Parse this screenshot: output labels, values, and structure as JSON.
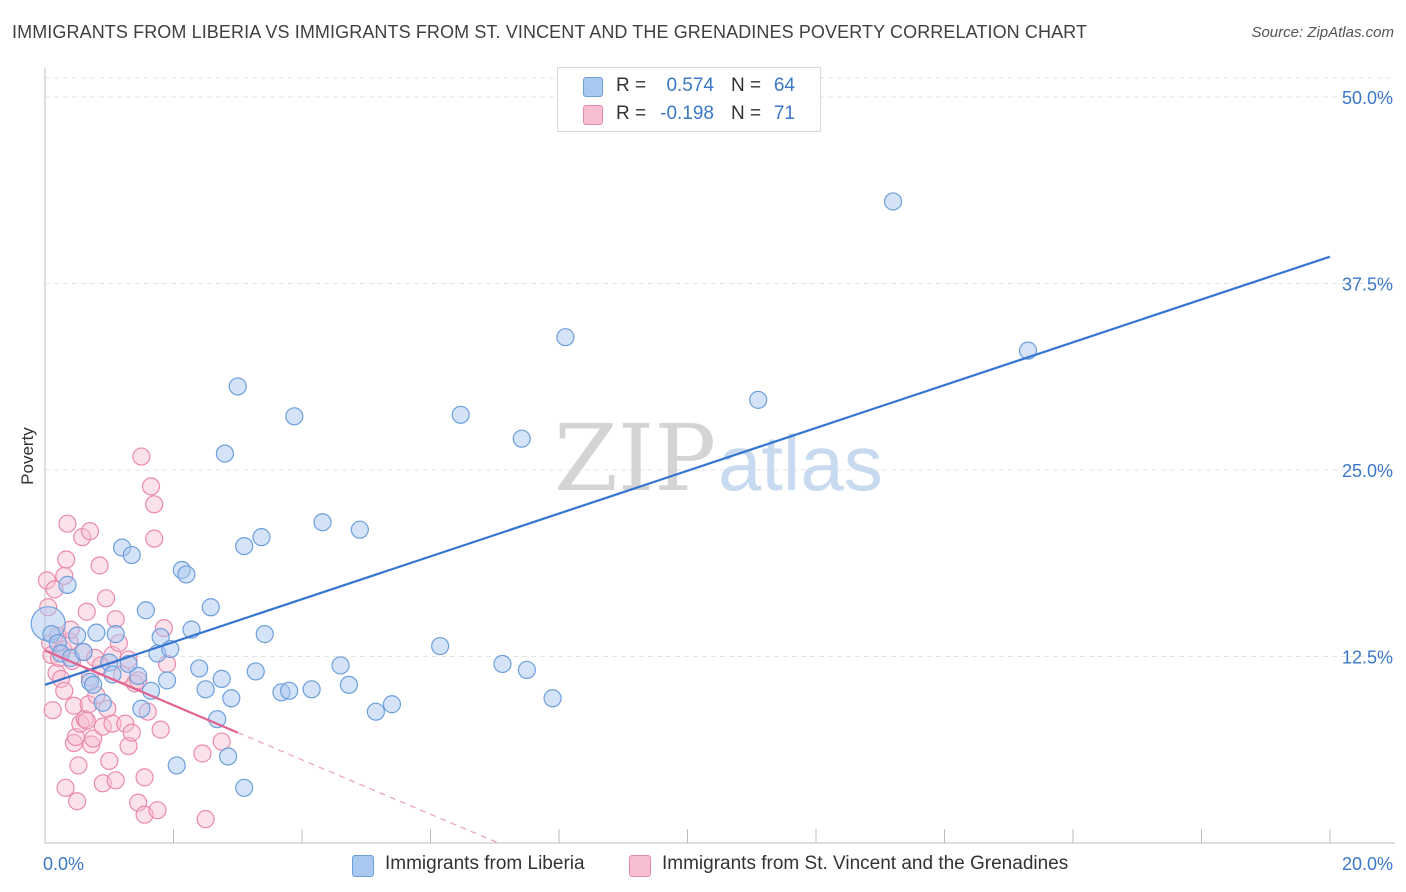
{
  "title": "IMMIGRANTS FROM LIBERIA VS IMMIGRANTS FROM ST. VINCENT AND THE GRENADINES POVERTY CORRELATION CHART",
  "source": "Source: ZipAtlas.com",
  "watermark": {
    "zip": "ZIP",
    "atlas": "atlas"
  },
  "legend_top": [
    {
      "r_label": "R =",
      "r_value": "0.574",
      "n_label": "N =",
      "n_value": "64"
    },
    {
      "r_label": "R =",
      "r_value": "-0.198",
      "n_label": "N =",
      "n_value": "71"
    }
  ],
  "legend_bottom": [
    "Immigrants from Liberia",
    "Immigrants from St. Vincent and the Grenadines"
  ],
  "colors": {
    "blue_fill": "#a9c8f0",
    "blue_stroke": "#6d9fdb",
    "blue_line": "#3575cf",
    "pink_fill": "#f6bfd1",
    "pink_stroke": "#e98aac",
    "pink_line": "#e0628f",
    "tick_label": "#3a78c9",
    "grid": "#e3e3e3"
  },
  "chart_data": {
    "type": "scatter",
    "title": "IMMIGRANTS FROM LIBERIA VS IMMIGRANTS FROM ST. VINCENT AND THE GRENADINES POVERTY CORRELATION CHART",
    "xlabel": "",
    "ylabel": "Poverty",
    "xlim": [
      0,
      20
    ],
    "ylim": [
      0,
      50
    ],
    "x_tick_labels": [
      "0.0%",
      "20.0%"
    ],
    "y_ticks": [
      12.5,
      25.0,
      37.5,
      50.0
    ],
    "y_tick_labels": [
      "12.5%",
      "25.0%",
      "37.5%",
      "50.0%"
    ],
    "grid": true,
    "legend_position": "top-center",
    "series": [
      {
        "name": "Immigrants from Liberia",
        "R": 0.574,
        "N": 64,
        "trend": {
          "x": [
            0,
            20
          ],
          "y": [
            10.6,
            39.3
          ]
        },
        "points": [
          {
            "x": 0.05,
            "y": 14.7,
            "big": true
          },
          {
            "x": 0.1,
            "y": 14.0
          },
          {
            "x": 0.2,
            "y": 13.4
          },
          {
            "x": 0.25,
            "y": 12.7
          },
          {
            "x": 0.35,
            "y": 17.3
          },
          {
            "x": 0.4,
            "y": 12.4
          },
          {
            "x": 0.5,
            "y": 13.9
          },
          {
            "x": 0.6,
            "y": 12.8
          },
          {
            "x": 0.7,
            "y": 10.8
          },
          {
            "x": 0.75,
            "y": 10.6
          },
          {
            "x": 0.8,
            "y": 14.1
          },
          {
            "x": 0.9,
            "y": 9.4
          },
          {
            "x": 1.0,
            "y": 12.1
          },
          {
            "x": 1.05,
            "y": 11.3
          },
          {
            "x": 1.1,
            "y": 14.0
          },
          {
            "x": 1.2,
            "y": 19.8
          },
          {
            "x": 1.3,
            "y": 12.0
          },
          {
            "x": 1.35,
            "y": 19.3
          },
          {
            "x": 1.45,
            "y": 11.2
          },
          {
            "x": 1.5,
            "y": 9.0
          },
          {
            "x": 1.57,
            "y": 15.6
          },
          {
            "x": 1.65,
            "y": 10.2
          },
          {
            "x": 1.75,
            "y": 12.7
          },
          {
            "x": 1.8,
            "y": 13.8
          },
          {
            "x": 1.9,
            "y": 10.9
          },
          {
            "x": 1.95,
            "y": 13.0
          },
          {
            "x": 2.05,
            "y": 5.2
          },
          {
            "x": 2.13,
            "y": 18.3
          },
          {
            "x": 2.2,
            "y": 18.0
          },
          {
            "x": 2.28,
            "y": 14.3
          },
          {
            "x": 2.4,
            "y": 11.7
          },
          {
            "x": 2.5,
            "y": 10.3
          },
          {
            "x": 2.58,
            "y": 15.8
          },
          {
            "x": 2.68,
            "y": 8.3
          },
          {
            "x": 2.75,
            "y": 11.0
          },
          {
            "x": 2.8,
            "y": 26.1
          },
          {
            "x": 2.85,
            "y": 5.8
          },
          {
            "x": 2.9,
            "y": 9.7
          },
          {
            "x": 3.0,
            "y": 30.6
          },
          {
            "x": 3.1,
            "y": 3.7
          },
          {
            "x": 3.1,
            "y": 19.9
          },
          {
            "x": 3.28,
            "y": 11.5
          },
          {
            "x": 3.37,
            "y": 20.5
          },
          {
            "x": 3.42,
            "y": 14.0
          },
          {
            "x": 3.68,
            "y": 10.1
          },
          {
            "x": 3.8,
            "y": 10.2
          },
          {
            "x": 3.88,
            "y": 28.6
          },
          {
            "x": 4.15,
            "y": 10.3
          },
          {
            "x": 4.32,
            "y": 21.5
          },
          {
            "x": 4.6,
            "y": 11.9
          },
          {
            "x": 4.73,
            "y": 10.6
          },
          {
            "x": 4.9,
            "y": 21.0
          },
          {
            "x": 5.15,
            "y": 8.8
          },
          {
            "x": 5.4,
            "y": 9.3
          },
          {
            "x": 6.15,
            "y": 13.2
          },
          {
            "x": 6.47,
            "y": 28.7
          },
          {
            "x": 7.12,
            "y": 12.0
          },
          {
            "x": 7.42,
            "y": 27.1
          },
          {
            "x": 7.5,
            "y": 11.6
          },
          {
            "x": 7.9,
            "y": 9.7
          },
          {
            "x": 8.1,
            "y": 33.9
          },
          {
            "x": 11.1,
            "y": 29.7
          },
          {
            "x": 13.2,
            "y": 43.0
          },
          {
            "x": 15.3,
            "y": 33.0
          }
        ]
      },
      {
        "name": "Immigrants from St. Vincent and the Grenadines",
        "R": -0.198,
        "N": 71,
        "trend": {
          "x": [
            0,
            3.0
          ],
          "y": [
            12.9,
            7.4
          ]
        },
        "trend_dashed": {
          "x": [
            3.0,
            20
          ],
          "y": [
            7.4,
            -23.6
          ]
        },
        "points": [
          {
            "x": 0.03,
            "y": 17.6
          },
          {
            "x": 0.05,
            "y": 15.8
          },
          {
            "x": 0.08,
            "y": 13.4
          },
          {
            "x": 0.1,
            "y": 12.6
          },
          {
            "x": 0.12,
            "y": 8.9
          },
          {
            "x": 0.15,
            "y": 17.0
          },
          {
            "x": 0.18,
            "y": 11.4
          },
          {
            "x": 0.2,
            "y": 13.9
          },
          {
            "x": 0.22,
            "y": 12.4
          },
          {
            "x": 0.25,
            "y": 11.0
          },
          {
            "x": 0.28,
            "y": 13.0
          },
          {
            "x": 0.3,
            "y": 17.9
          },
          {
            "x": 0.3,
            "y": 10.2
          },
          {
            "x": 0.32,
            "y": 3.7
          },
          {
            "x": 0.33,
            "y": 19.0
          },
          {
            "x": 0.35,
            "y": 21.4
          },
          {
            "x": 0.38,
            "y": 13.5
          },
          {
            "x": 0.4,
            "y": 14.3
          },
          {
            "x": 0.42,
            "y": 12.2
          },
          {
            "x": 0.45,
            "y": 9.2
          },
          {
            "x": 0.45,
            "y": 6.7
          },
          {
            "x": 0.48,
            "y": 7.1
          },
          {
            "x": 0.5,
            "y": 2.8
          },
          {
            "x": 0.52,
            "y": 5.2
          },
          {
            "x": 0.55,
            "y": 8.0
          },
          {
            "x": 0.58,
            "y": 20.5
          },
          {
            "x": 0.6,
            "y": 12.8
          },
          {
            "x": 0.62,
            "y": 8.3
          },
          {
            "x": 0.65,
            "y": 15.5
          },
          {
            "x": 0.68,
            "y": 9.3
          },
          {
            "x": 0.7,
            "y": 20.9
          },
          {
            "x": 0.7,
            "y": 11.1
          },
          {
            "x": 0.72,
            "y": 6.6
          },
          {
            "x": 0.75,
            "y": 7.0
          },
          {
            "x": 0.78,
            "y": 12.4
          },
          {
            "x": 0.8,
            "y": 9.9
          },
          {
            "x": 0.85,
            "y": 18.6
          },
          {
            "x": 0.87,
            "y": 11.9
          },
          {
            "x": 0.9,
            "y": 7.8
          },
          {
            "x": 0.9,
            "y": 4.0
          },
          {
            "x": 0.95,
            "y": 16.4
          },
          {
            "x": 0.97,
            "y": 9.0
          },
          {
            "x": 1.0,
            "y": 5.5
          },
          {
            "x": 1.05,
            "y": 8.0
          },
          {
            "x": 1.05,
            "y": 12.6
          },
          {
            "x": 1.1,
            "y": 4.2
          },
          {
            "x": 1.1,
            "y": 15.0
          },
          {
            "x": 1.15,
            "y": 13.4
          },
          {
            "x": 1.2,
            "y": 11.3
          },
          {
            "x": 1.25,
            "y": 8.0
          },
          {
            "x": 1.3,
            "y": 6.5
          },
          {
            "x": 1.3,
            "y": 12.3
          },
          {
            "x": 1.35,
            "y": 7.4
          },
          {
            "x": 1.4,
            "y": 10.7
          },
          {
            "x": 1.45,
            "y": 2.7
          },
          {
            "x": 1.45,
            "y": 10.9
          },
          {
            "x": 1.5,
            "y": 25.9
          },
          {
            "x": 1.55,
            "y": 4.4
          },
          {
            "x": 1.55,
            "y": 1.9
          },
          {
            "x": 1.6,
            "y": 8.8
          },
          {
            "x": 1.65,
            "y": 23.9
          },
          {
            "x": 1.7,
            "y": 22.7
          },
          {
            "x": 1.7,
            "y": 20.4
          },
          {
            "x": 1.75,
            "y": 2.2
          },
          {
            "x": 1.8,
            "y": 7.6
          },
          {
            "x": 1.85,
            "y": 14.4
          },
          {
            "x": 1.9,
            "y": 12.0
          },
          {
            "x": 2.45,
            "y": 6.0
          },
          {
            "x": 2.5,
            "y": 1.6
          },
          {
            "x": 2.75,
            "y": 6.8
          },
          {
            "x": 0.65,
            "y": 8.2
          }
        ]
      }
    ]
  }
}
